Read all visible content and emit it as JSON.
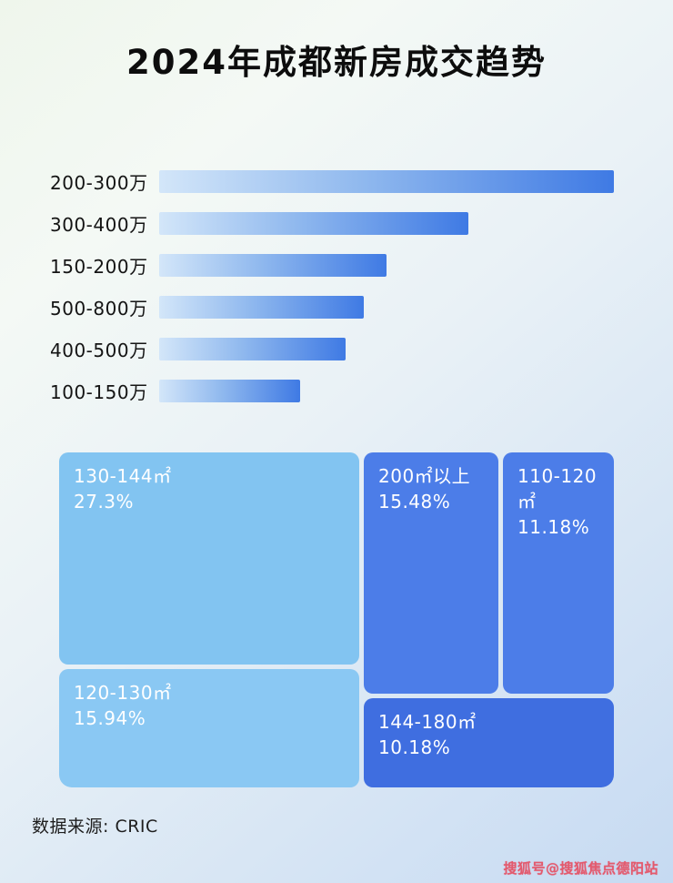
{
  "title": "2024年成都新房成交趋势",
  "footer": {
    "source_label": "数据来源: CRIC"
  },
  "watermark": "搜狐号@搜狐焦点德阳站",
  "colors": {
    "bar_gradient_start": "#d3e6f9",
    "bar_gradient_end": "#3f7ae4",
    "treemap_light_blue": "#82c4f1",
    "treemap_light_blue_2": "#8ac8f3",
    "treemap_medium_blue": "#4c7de8",
    "treemap_dark_blue": "#3f6ee0",
    "watermark_red": "#e35a6d"
  },
  "chart_data": [
    {
      "type": "bar",
      "orientation": "horizontal",
      "title": "2024年成都新房成交趋势",
      "categories": [
        "200-300万",
        "300-400万",
        "150-200万",
        "500-800万",
        "400-500万",
        "100-150万"
      ],
      "values": [
        100,
        68,
        50,
        45,
        41,
        31
      ],
      "value_note": "no axis/value labels shown; values are estimated relative bar lengths (% of longest bar)",
      "xlabel": "",
      "ylabel": "",
      "grid": false,
      "legend": false
    },
    {
      "type": "treemap",
      "items": [
        {
          "label": "130-144㎡",
          "value_pct": 27.3,
          "display": "27.3%"
        },
        {
          "label": "120-130㎡",
          "value_pct": 15.94,
          "display": "15.94%"
        },
        {
          "label": "200㎡以上",
          "value_pct": 15.48,
          "display": "15.48%"
        },
        {
          "label": "110-120㎡",
          "value_pct": 11.18,
          "display": "11.18%"
        },
        {
          "label": "144-180㎡",
          "value_pct": 10.18,
          "display": "10.18%"
        }
      ]
    }
  ]
}
